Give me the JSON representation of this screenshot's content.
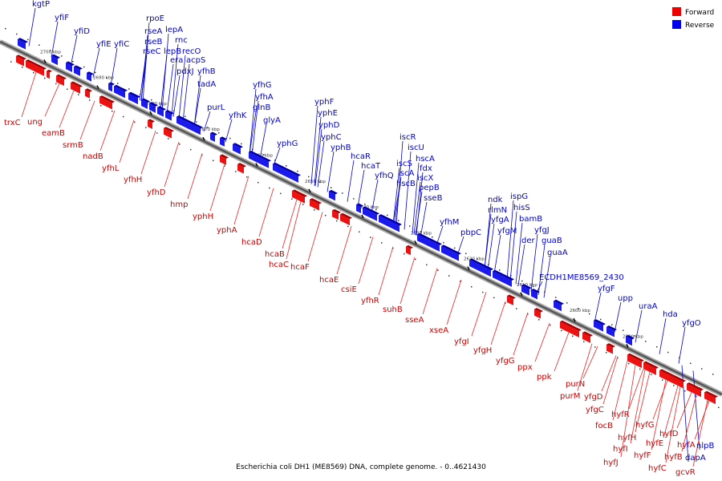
{
  "footer": {
    "caption": "Escherichia coli DH1 (ME8569) DNA, complete genome. - 0..4621430"
  },
  "legend": [
    {
      "label": "Forward",
      "color": "#ee0000"
    },
    {
      "label": "Reverse",
      "color": "#0000ee"
    }
  ],
  "axis": {
    "ticks": [
      {
        "label": "2700 kbp",
        "pos": 2700
      },
      {
        "label": "2690 kbp",
        "pos": 2690
      },
      {
        "label": "2680 kbp",
        "pos": 2680
      },
      {
        "label": "2670 kbp",
        "pos": 2670
      },
      {
        "label": "2660 kbp",
        "pos": 2660
      },
      {
        "label": "2650 kbp",
        "pos": 2650
      },
      {
        "label": "2640 kbp",
        "pos": 2640
      },
      {
        "label": "2630 kbp",
        "pos": 2630
      },
      {
        "label": "2620 kbp",
        "pos": 2620
      },
      {
        "label": "2610 kbp",
        "pos": 2610
      },
      {
        "label": "2600 kbp",
        "pos": 2600
      },
      {
        "label": "2590 kbp",
        "pos": 2590
      }
    ]
  },
  "genes_reverse": [
    "kgtP",
    "yfiF",
    "yfiD",
    "yfiE",
    "yfiC",
    "rpoE",
    "rseA",
    "rseB",
    "rseC",
    "lepA",
    "rnc",
    "lepB",
    "recO",
    "era",
    "acpS",
    "pdxJ",
    "yfhB",
    "tadA",
    "purL",
    "yfhK",
    "yfhG",
    "yfhA",
    "glnB",
    "glyA",
    "yphF",
    "yphE",
    "yphD",
    "yphG",
    "yphC",
    "yphB",
    "hcaR",
    "hcaT",
    "iscR",
    "iscU",
    "iscS",
    "hscA",
    "fdx",
    "iscA",
    "iscX",
    "yfhQ",
    "hscB",
    "pepB",
    "sseB",
    "yfhM",
    "pbpC",
    "ndk",
    "rlmN",
    "ispG",
    "yfgA",
    "hisS",
    "yfgM",
    "bamB",
    "yfgJ",
    "der",
    "guaB",
    "guaA",
    "ECDH1ME8569_2430",
    "yfgF",
    "upp",
    "uraA",
    "hda",
    "yfgO",
    "nlpB",
    "dapA"
  ],
  "genes_forward": [
    "trxC",
    "ung",
    "eamB",
    "srmB",
    "nadB",
    "yfhL",
    "yfhH",
    "yfhD",
    "hmp",
    "yphH",
    "yphA",
    "hcaD",
    "hcaB",
    "hcaC",
    "hcaF",
    "hcaE",
    "csiE",
    "yfhR",
    "suhB",
    "sseA",
    "xseA",
    "yfgI",
    "yfgH",
    "yfgG",
    "ppx",
    "ppk",
    "purN",
    "purM",
    "yfgD",
    "yfgC",
    "focB",
    "hyfR",
    "hyfH",
    "hyfG",
    "hyfI",
    "hyfE",
    "hyfD",
    "hyfF",
    "hyfJ",
    "hyfC",
    "hyfB",
    "hyfA",
    "gcvR"
  ]
}
